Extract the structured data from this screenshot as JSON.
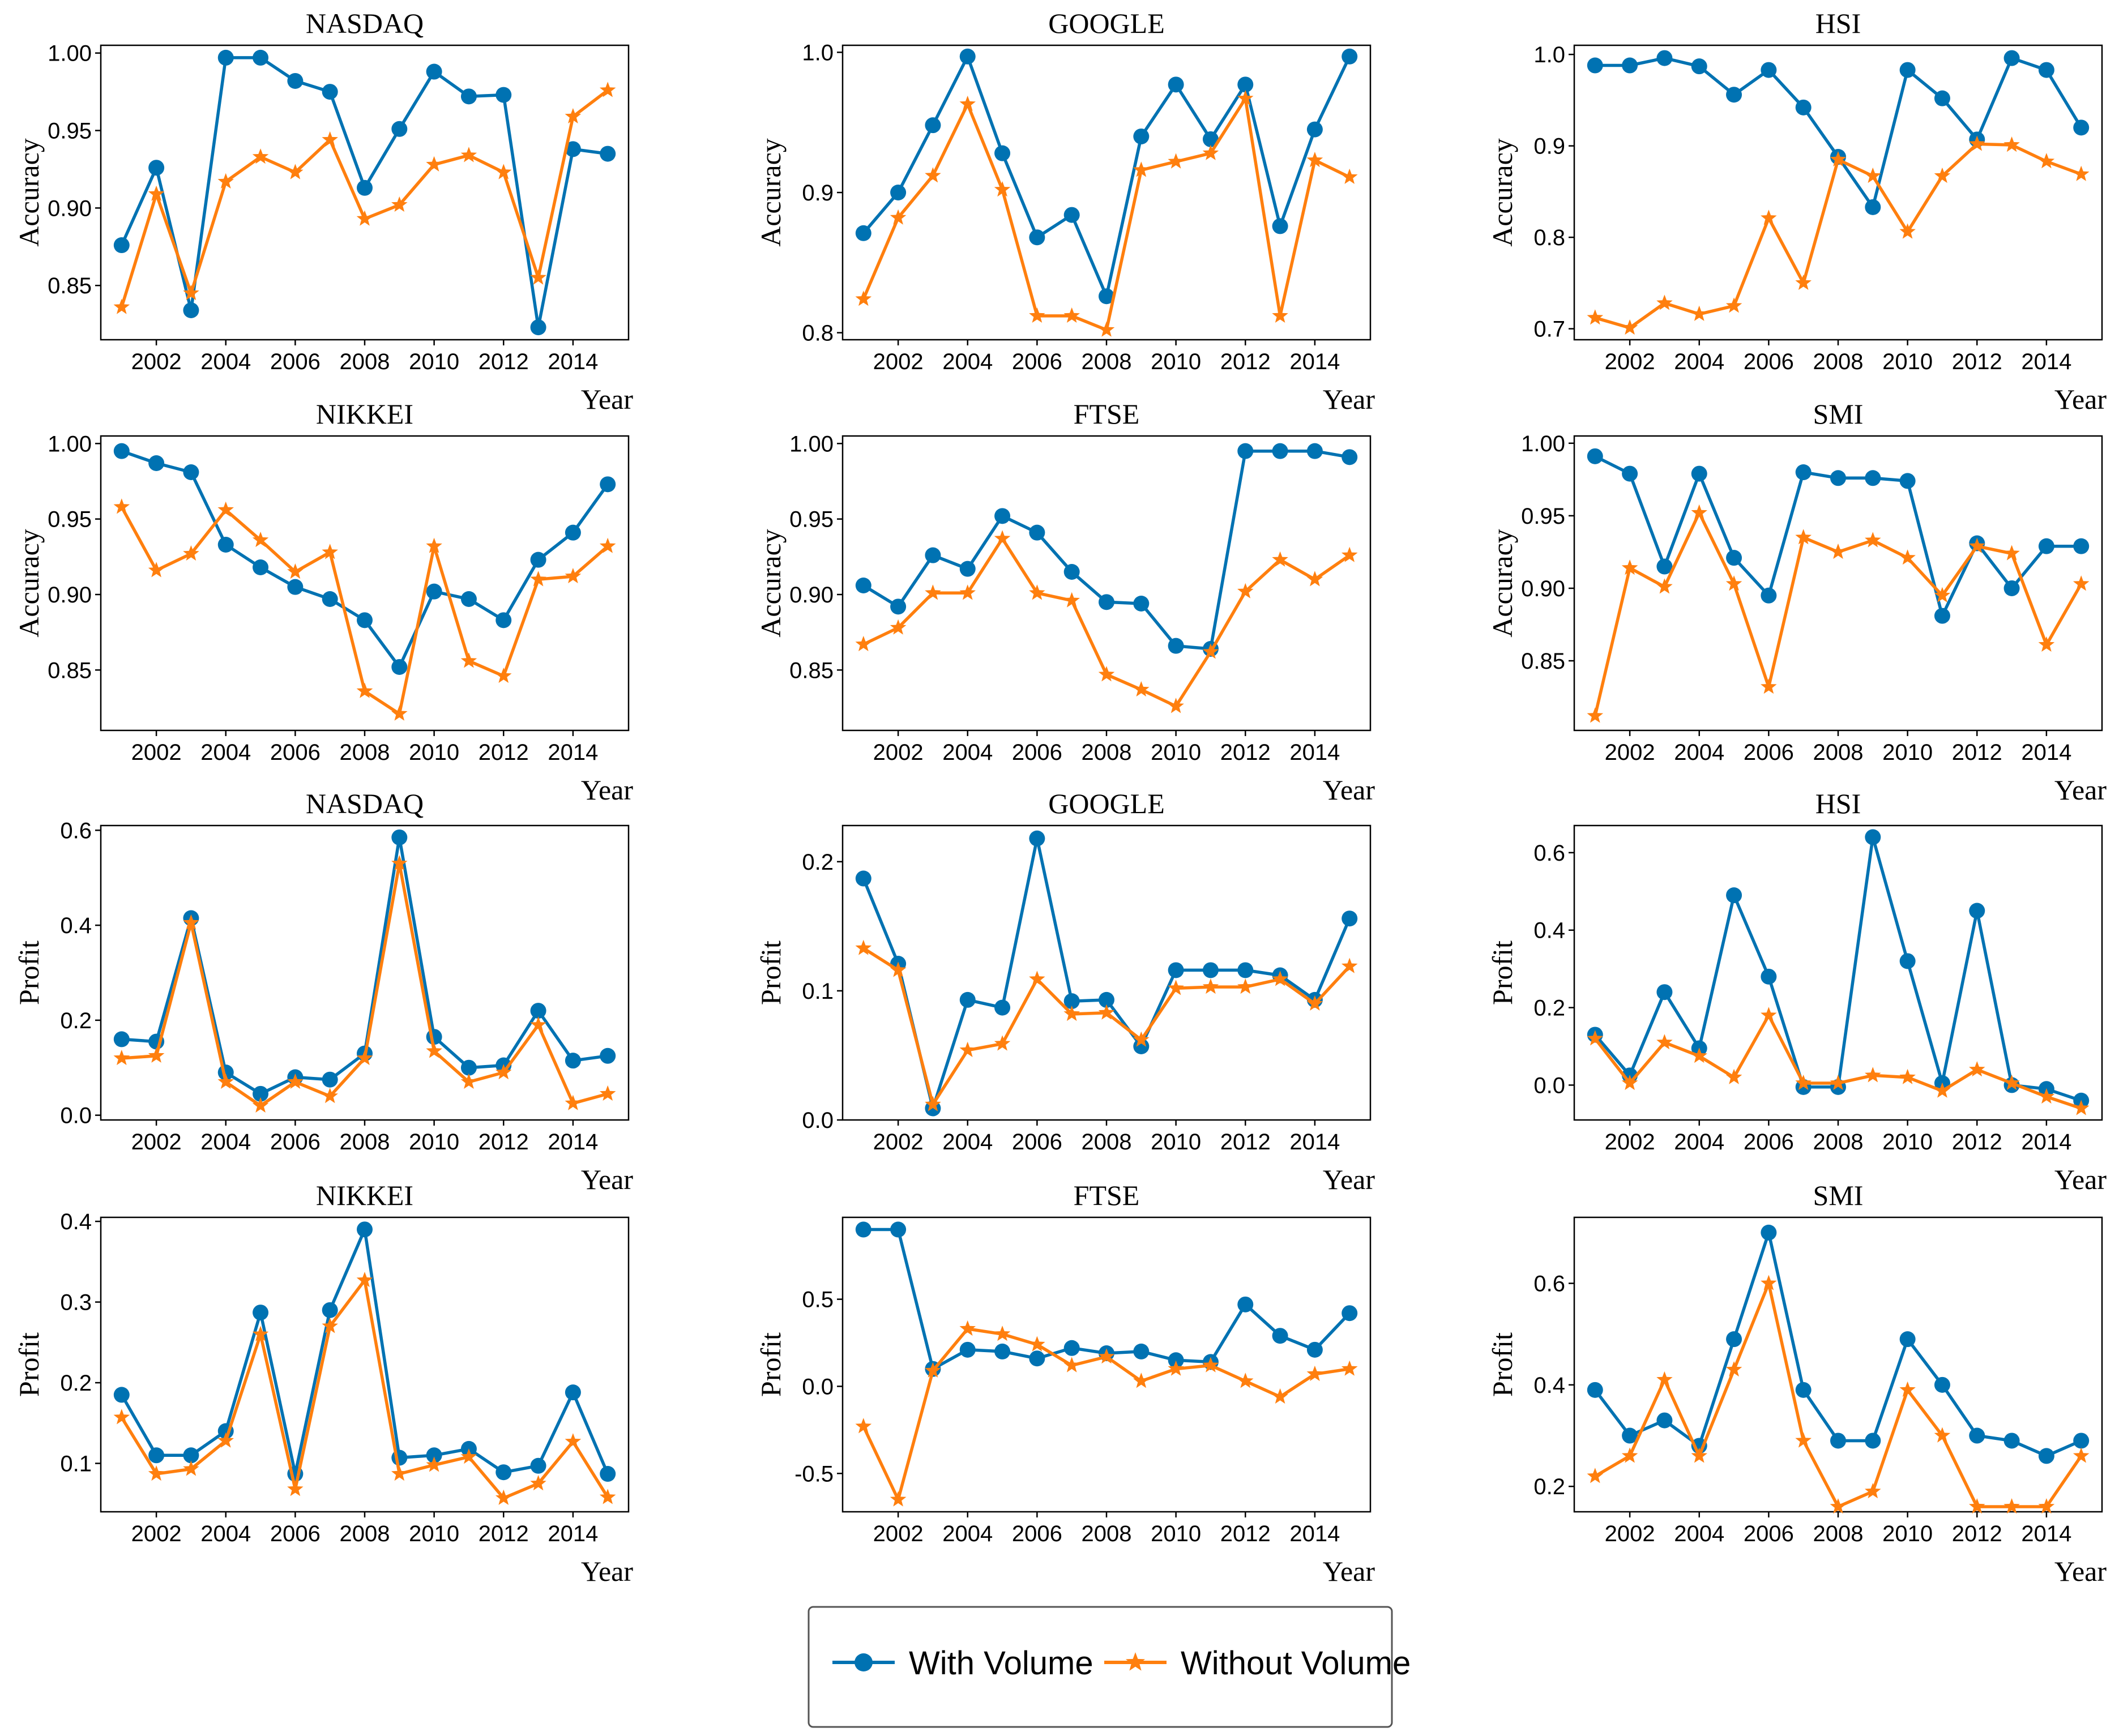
{
  "chart_data": [
    {
      "type": "line",
      "title": "NASDAQ",
      "ylabel": "Accuracy",
      "xlabel": "Year",
      "xlim": [
        2000.4,
        2015.6
      ],
      "ylim": [
        0.815,
        1.005
      ],
      "yticks": [
        "0.85",
        "0.90",
        "0.95",
        "1.00"
      ],
      "xticks": [
        "2002",
        "2004",
        "2006",
        "2008",
        "2010",
        "2012",
        "2014"
      ],
      "x": [
        2001,
        2002,
        2003,
        2004,
        2005,
        2006,
        2007,
        2008,
        2009,
        2010,
        2011,
        2012,
        2013,
        2014,
        2015
      ],
      "series": [
        {
          "name": "With Volume",
          "values": [
            0.876,
            0.926,
            0.834,
            0.997,
            0.997,
            0.982,
            0.975,
            0.913,
            0.951,
            0.988,
            0.972,
            0.973,
            0.823,
            0.938,
            0.935
          ]
        },
        {
          "name": "Without Volume",
          "values": [
            0.836,
            0.909,
            0.845,
            0.917,
            0.933,
            0.923,
            0.944,
            0.893,
            0.902,
            0.928,
            0.934,
            0.923,
            0.855,
            0.959,
            0.976
          ]
        }
      ]
    },
    {
      "type": "line",
      "title": "GOOGLE",
      "ylabel": "Accuracy",
      "xlabel": "Year",
      "xlim": [
        2000.4,
        2015.6
      ],
      "ylim": [
        0.795,
        1.005
      ],
      "yticks": [
        "0.8",
        "0.9",
        "1.0"
      ],
      "xticks": [
        "2002",
        "2004",
        "2006",
        "2008",
        "2010",
        "2012",
        "2014"
      ],
      "x": [
        2001,
        2002,
        2003,
        2004,
        2005,
        2006,
        2007,
        2008,
        2009,
        2010,
        2011,
        2012,
        2013,
        2014,
        2015
      ],
      "series": [
        {
          "name": "With Volume",
          "values": [
            0.871,
            0.9,
            0.948,
            0.997,
            0.928,
            0.868,
            0.884,
            0.826,
            0.94,
            0.977,
            0.938,
            0.977,
            0.876,
            0.945,
            0.997
          ]
        },
        {
          "name": "Without Volume",
          "values": [
            0.824,
            0.882,
            0.912,
            0.963,
            0.902,
            0.812,
            0.812,
            0.802,
            0.916,
            0.922,
            0.928,
            0.967,
            0.812,
            0.923,
            0.911
          ]
        }
      ]
    },
    {
      "type": "line",
      "title": "HSI",
      "ylabel": "Accuracy",
      "xlabel": "Year",
      "xlim": [
        2000.4,
        2015.6
      ],
      "ylim": [
        0.688,
        1.01
      ],
      "yticks": [
        "0.7",
        "0.8",
        "0.9",
        "1.0"
      ],
      "xticks": [
        "2002",
        "2004",
        "2006",
        "2008",
        "2010",
        "2012",
        "2014"
      ],
      "x": [
        2001,
        2002,
        2003,
        2004,
        2005,
        2006,
        2007,
        2008,
        2009,
        2010,
        2011,
        2012,
        2013,
        2014,
        2015
      ],
      "series": [
        {
          "name": "With Volume",
          "values": [
            0.988,
            0.988,
            0.996,
            0.987,
            0.956,
            0.983,
            0.942,
            0.888,
            0.833,
            0.983,
            0.952,
            0.907,
            0.996,
            0.983,
            0.92
          ]
        },
        {
          "name": "Without Volume",
          "values": [
            0.712,
            0.701,
            0.728,
            0.716,
            0.725,
            0.821,
            0.75,
            0.885,
            0.867,
            0.806,
            0.867,
            0.902,
            0.901,
            0.883,
            0.869
          ]
        }
      ]
    },
    {
      "type": "line",
      "title": "NIKKEI",
      "ylabel": "Accuracy",
      "xlabel": "Year",
      "xlim": [
        2000.4,
        2015.6
      ],
      "ylim": [
        0.81,
        1.005
      ],
      "yticks": [
        "0.85",
        "0.90",
        "0.95",
        "1.00"
      ],
      "xticks": [
        "2002",
        "2004",
        "2006",
        "2008",
        "2010",
        "2012",
        "2014"
      ],
      "x": [
        2001,
        2002,
        2003,
        2004,
        2005,
        2006,
        2007,
        2008,
        2009,
        2010,
        2011,
        2012,
        2013,
        2014,
        2015
      ],
      "series": [
        {
          "name": "With Volume",
          "values": [
            0.995,
            0.987,
            0.981,
            0.933,
            0.918,
            0.905,
            0.897,
            0.883,
            0.852,
            0.902,
            0.897,
            0.883,
            0.923,
            0.941,
            0.973
          ]
        },
        {
          "name": "Without Volume",
          "values": [
            0.958,
            0.916,
            0.927,
            0.956,
            0.936,
            0.915,
            0.928,
            0.836,
            0.821,
            0.932,
            0.856,
            0.846,
            0.91,
            0.912,
            0.932
          ]
        }
      ]
    },
    {
      "type": "line",
      "title": "FTSE",
      "ylabel": "Accuracy",
      "xlabel": "Year",
      "xlim": [
        2000.4,
        2015.6
      ],
      "ylim": [
        0.81,
        1.005
      ],
      "yticks": [
        "0.85",
        "0.90",
        "0.95",
        "1.00"
      ],
      "xticks": [
        "2002",
        "2004",
        "2006",
        "2008",
        "2010",
        "2012",
        "2014"
      ],
      "x": [
        2001,
        2002,
        2003,
        2004,
        2005,
        2006,
        2007,
        2008,
        2009,
        2010,
        2011,
        2012,
        2013,
        2014,
        2015
      ],
      "series": [
        {
          "name": "With Volume",
          "values": [
            0.906,
            0.892,
            0.926,
            0.917,
            0.952,
            0.941,
            0.915,
            0.895,
            0.894,
            0.866,
            0.864,
            0.995,
            0.995,
            0.995,
            0.991
          ]
        },
        {
          "name": "Without Volume",
          "values": [
            0.867,
            0.878,
            0.901,
            0.901,
            0.937,
            0.901,
            0.896,
            0.847,
            0.837,
            0.826,
            0.862,
            0.902,
            0.923,
            0.91,
            0.926
          ]
        }
      ]
    },
    {
      "type": "line",
      "title": "SMI",
      "ylabel": "Accuracy",
      "xlabel": "Year",
      "xlim": [
        2000.4,
        2015.6
      ],
      "ylim": [
        0.802,
        1.005
      ],
      "yticks": [
        "0.85",
        "0.90",
        "0.95",
        "1.00"
      ],
      "xticks": [
        "2002",
        "2004",
        "2006",
        "2008",
        "2010",
        "2012",
        "2014"
      ],
      "x": [
        2001,
        2002,
        2003,
        2004,
        2005,
        2006,
        2007,
        2008,
        2009,
        2010,
        2011,
        2012,
        2013,
        2014,
        2015
      ],
      "series": [
        {
          "name": "With Volume",
          "values": [
            0.991,
            0.979,
            0.915,
            0.979,
            0.921,
            0.895,
            0.98,
            0.976,
            0.976,
            0.974,
            0.881,
            0.931,
            0.9,
            0.929,
            0.929
          ]
        },
        {
          "name": "Without Volume",
          "values": [
            0.812,
            0.914,
            0.901,
            0.952,
            0.903,
            0.832,
            0.935,
            0.925,
            0.933,
            0.921,
            0.895,
            0.929,
            0.924,
            0.861,
            0.903
          ]
        }
      ]
    },
    {
      "type": "line",
      "title": "NASDAQ",
      "ylabel": "Profit",
      "xlabel": "Year",
      "xlim": [
        2000.4,
        2015.6
      ],
      "ylim": [
        -0.01,
        0.61
      ],
      "yticks": [
        "0.0",
        "0.2",
        "0.4",
        "0.6"
      ],
      "xticks": [
        "2002",
        "2004",
        "2006",
        "2008",
        "2010",
        "2012",
        "2014"
      ],
      "x": [
        2001,
        2002,
        2003,
        2004,
        2005,
        2006,
        2007,
        2008,
        2009,
        2010,
        2011,
        2012,
        2013,
        2014,
        2015
      ],
      "series": [
        {
          "name": "With Volume",
          "values": [
            0.16,
            0.155,
            0.415,
            0.09,
            0.045,
            0.08,
            0.075,
            0.13,
            0.585,
            0.165,
            0.1,
            0.105,
            0.22,
            0.115,
            0.125
          ]
        },
        {
          "name": "Without Volume",
          "values": [
            0.12,
            0.125,
            0.405,
            0.07,
            0.02,
            0.07,
            0.04,
            0.12,
            0.53,
            0.135,
            0.07,
            0.09,
            0.19,
            0.025,
            0.045
          ]
        }
      ]
    },
    {
      "type": "line",
      "title": "GOOGLE",
      "ylabel": "Profit",
      "xlabel": "Year",
      "xlim": [
        2000.4,
        2015.6
      ],
      "ylim": [
        0.0,
        0.228
      ],
      "yticks": [
        "0.0",
        "0.1",
        "0.2"
      ],
      "xticks": [
        "2002",
        "2004",
        "2006",
        "2008",
        "2010",
        "2012",
        "2014"
      ],
      "x": [
        2001,
        2002,
        2003,
        2004,
        2005,
        2006,
        2007,
        2008,
        2009,
        2010,
        2011,
        2012,
        2013,
        2014,
        2015
      ],
      "series": [
        {
          "name": "With Volume",
          "values": [
            0.187,
            0.121,
            0.009,
            0.093,
            0.087,
            0.218,
            0.092,
            0.093,
            0.057,
            0.116,
            0.116,
            0.116,
            0.112,
            0.093,
            0.156
          ]
        },
        {
          "name": "Without Volume",
          "values": [
            0.133,
            0.116,
            0.012,
            0.054,
            0.059,
            0.109,
            0.082,
            0.083,
            0.062,
            0.102,
            0.103,
            0.103,
            0.109,
            0.09,
            0.119
          ]
        }
      ]
    },
    {
      "type": "line",
      "title": "HSI",
      "ylabel": "Profit",
      "xlabel": "Year",
      "xlim": [
        2000.4,
        2015.6
      ],
      "ylim": [
        -0.09,
        0.67
      ],
      "yticks": [
        "0.0",
        "0.2",
        "0.4",
        "0.6"
      ],
      "xticks": [
        "2002",
        "2004",
        "2006",
        "2008",
        "2010",
        "2012",
        "2014"
      ],
      "x": [
        2001,
        2002,
        2003,
        2004,
        2005,
        2006,
        2007,
        2008,
        2009,
        2010,
        2011,
        2012,
        2013,
        2014,
        2015
      ],
      "series": [
        {
          "name": "With Volume",
          "values": [
            0.13,
            0.025,
            0.24,
            0.095,
            0.49,
            0.28,
            -0.005,
            -0.005,
            0.64,
            0.32,
            0.005,
            0.45,
            0.0,
            -0.01,
            -0.04
          ]
        },
        {
          "name": "Without Volume",
          "values": [
            0.12,
            0.005,
            0.11,
            0.075,
            0.02,
            0.18,
            0.005,
            0.005,
            0.025,
            0.02,
            -0.015,
            0.04,
            0.005,
            -0.03,
            -0.06
          ]
        }
      ]
    },
    {
      "type": "line",
      "title": "NIKKEI",
      "ylabel": "Profit",
      "xlabel": "Year",
      "xlim": [
        2000.4,
        2015.6
      ],
      "ylim": [
        0.04,
        0.405
      ],
      "yticks": [
        "0.1",
        "0.2",
        "0.3",
        "0.4"
      ],
      "xticks": [
        "2002",
        "2004",
        "2006",
        "2008",
        "2010",
        "2012",
        "2014"
      ],
      "x": [
        2001,
        2002,
        2003,
        2004,
        2005,
        2006,
        2007,
        2008,
        2009,
        2010,
        2011,
        2012,
        2013,
        2014,
        2015
      ],
      "series": [
        {
          "name": "With Volume",
          "values": [
            0.185,
            0.11,
            0.11,
            0.14,
            0.287,
            0.087,
            0.29,
            0.39,
            0.107,
            0.11,
            0.118,
            0.089,
            0.097,
            0.188,
            0.087
          ]
        },
        {
          "name": "Without Volume",
          "values": [
            0.157,
            0.087,
            0.093,
            0.128,
            0.26,
            0.068,
            0.27,
            0.327,
            0.087,
            0.098,
            0.108,
            0.057,
            0.075,
            0.127,
            0.058
          ]
        }
      ]
    },
    {
      "type": "line",
      "title": "FTSE",
      "ylabel": "Profit",
      "xlabel": "Year",
      "xlim": [
        2000.4,
        2015.6
      ],
      "ylim": [
        -0.72,
        0.97
      ],
      "yticks": [
        "-0.5",
        "0.0",
        "0.5"
      ],
      "xticks": [
        "2002",
        "2004",
        "2006",
        "2008",
        "2010",
        "2012",
        "2014"
      ],
      "x": [
        2001,
        2002,
        2003,
        2004,
        2005,
        2006,
        2007,
        2008,
        2009,
        2010,
        2011,
        2012,
        2013,
        2014,
        2015
      ],
      "series": [
        {
          "name": "With Volume",
          "values": [
            0.9,
            0.9,
            0.1,
            0.21,
            0.2,
            0.16,
            0.22,
            0.19,
            0.2,
            0.15,
            0.14,
            0.47,
            0.29,
            0.21,
            0.42
          ]
        },
        {
          "name": "Without Volume",
          "values": [
            -0.23,
            -0.65,
            0.09,
            0.33,
            0.3,
            0.24,
            0.12,
            0.17,
            0.03,
            0.1,
            0.12,
            0.03,
            -0.06,
            0.07,
            0.1
          ]
        }
      ]
    },
    {
      "type": "line",
      "title": "SMI",
      "ylabel": "Profit",
      "xlabel": "Year",
      "xlim": [
        2000.4,
        2015.6
      ],
      "ylim": [
        0.15,
        0.73
      ],
      "yticks": [
        "0.2",
        "0.4",
        "0.6"
      ],
      "xticks": [
        "2002",
        "2004",
        "2006",
        "2008",
        "2010",
        "2012",
        "2014"
      ],
      "x": [
        2001,
        2002,
        2003,
        2004,
        2005,
        2006,
        2007,
        2008,
        2009,
        2010,
        2011,
        2012,
        2013,
        2014,
        2015
      ],
      "series": [
        {
          "name": "With Volume",
          "values": [
            0.39,
            0.3,
            0.33,
            0.28,
            0.49,
            0.7,
            0.39,
            0.29,
            0.29,
            0.49,
            0.4,
            0.3,
            0.29,
            0.26,
            0.29
          ]
        },
        {
          "name": "Without Volume",
          "values": [
            0.22,
            0.26,
            0.41,
            0.26,
            0.43,
            0.6,
            0.29,
            0.16,
            0.19,
            0.39,
            0.3,
            0.16,
            0.16,
            0.16,
            0.26
          ]
        }
      ]
    }
  ],
  "legend": {
    "entries": [
      {
        "label": "With Volume",
        "color": "#0072b2",
        "marker": "circle"
      },
      {
        "label": "Without Volume",
        "color": "#ff7f0e",
        "marker": "star"
      }
    ]
  }
}
